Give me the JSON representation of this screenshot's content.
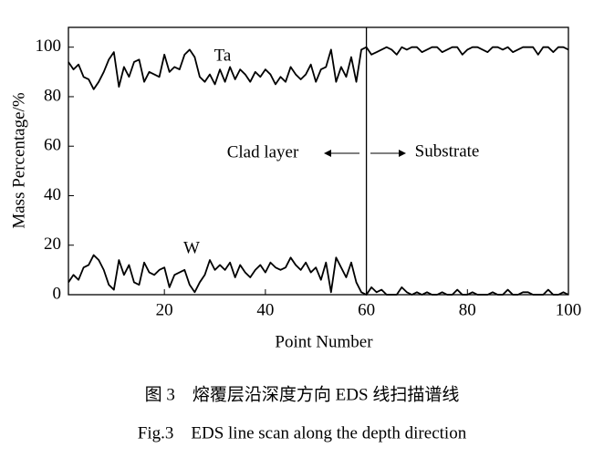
{
  "chart_data": {
    "type": "line",
    "x_label": "Point Number",
    "y_label": "Mass Percentage/%",
    "caption_cn": "图 3　熔覆层沿深度方向 EDS 线扫描谱线",
    "caption_en": "Fig.3　EDS line scan along the depth direction",
    "annotations": [
      "Ta",
      "W",
      "Clad layer",
      "Substrate"
    ],
    "divider_x": 60,
    "x": [
      1,
      2,
      3,
      4,
      5,
      6,
      7,
      8,
      9,
      10,
      11,
      12,
      13,
      14,
      15,
      16,
      17,
      18,
      19,
      20,
      21,
      22,
      23,
      24,
      25,
      26,
      27,
      28,
      29,
      30,
      31,
      32,
      33,
      34,
      35,
      36,
      37,
      38,
      39,
      40,
      41,
      42,
      43,
      44,
      45,
      46,
      47,
      48,
      49,
      50,
      51,
      52,
      53,
      54,
      55,
      56,
      57,
      58,
      59,
      60,
      61,
      62,
      63,
      64,
      65,
      66,
      67,
      68,
      69,
      70,
      71,
      72,
      73,
      74,
      75,
      76,
      77,
      78,
      79,
      80,
      81,
      82,
      83,
      84,
      85,
      86,
      87,
      88,
      89,
      90,
      91,
      92,
      93,
      94,
      95,
      96,
      97,
      98,
      99,
      100
    ],
    "series": [
      {
        "name": "Ta",
        "color": "#000000",
        "values": [
          94,
          91,
          93,
          88,
          87,
          83,
          86,
          90,
          95,
          98,
          84,
          92,
          88,
          94,
          95,
          86,
          90,
          89,
          88,
          97,
          90,
          92,
          91,
          97,
          99,
          96,
          88,
          86,
          89,
          85,
          91,
          86,
          92,
          87,
          91,
          89,
          86,
          90,
          88,
          91,
          89,
          85,
          88,
          86,
          92,
          89,
          87,
          89,
          93,
          86,
          91,
          92,
          99,
          86,
          92,
          88,
          96,
          86,
          99,
          100,
          97,
          98,
          99,
          100,
          99,
          97,
          100,
          99,
          100,
          100,
          98,
          99,
          100,
          100,
          98,
          99,
          100,
          100,
          97,
          99,
          100,
          100,
          99,
          98,
          100,
          100,
          99,
          100,
          98,
          99,
          100,
          100,
          100,
          97,
          100,
          100,
          98,
          100,
          100,
          99
        ]
      },
      {
        "name": "W",
        "color": "#000000",
        "values": [
          5,
          8,
          6,
          11,
          12,
          16,
          14,
          10,
          4,
          2,
          14,
          8,
          12,
          5,
          4,
          13,
          9,
          8,
          10,
          11,
          3,
          8,
          9,
          10,
          4,
          1,
          5,
          8,
          14,
          10,
          12,
          10,
          13,
          7,
          12,
          9,
          7,
          10,
          12,
          9,
          13,
          11,
          10,
          11,
          15,
          12,
          10,
          13,
          9,
          11,
          6,
          13,
          1,
          15,
          11,
          7,
          13,
          5,
          1,
          0,
          3,
          1,
          2,
          0,
          0,
          0,
          3,
          1,
          0,
          1,
          0,
          1,
          0,
          0,
          1,
          0,
          0,
          2,
          0,
          0,
          1,
          0,
          0,
          0,
          1,
          0,
          0,
          2,
          0,
          0,
          1,
          1,
          0,
          0,
          0,
          2,
          0,
          0,
          1,
          0
        ]
      }
    ],
    "xlim": [
      1,
      100
    ],
    "ylim": [
      0,
      108
    ],
    "xticks": [
      20,
      40,
      60,
      80,
      100
    ],
    "yticks": [
      0,
      20,
      40,
      60,
      80,
      100
    ]
  }
}
